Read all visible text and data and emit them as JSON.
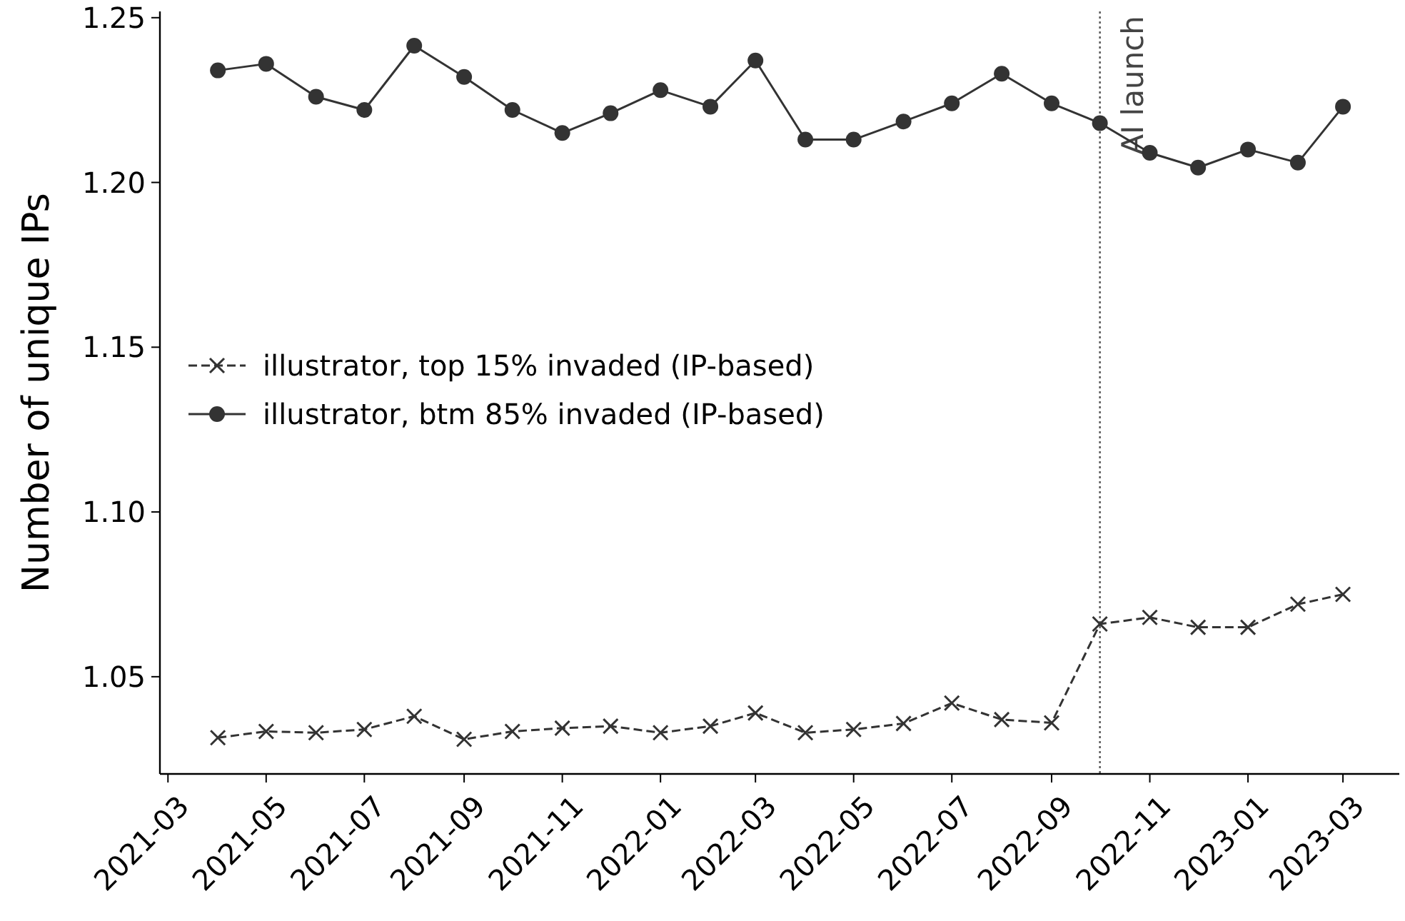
{
  "chart_data": {
    "type": "line",
    "ylabel": "Number of unique IPs",
    "x": [
      "2021-04",
      "2021-05",
      "2021-06",
      "2021-07",
      "2021-08",
      "2021-09",
      "2021-10",
      "2021-11",
      "2021-12",
      "2022-01",
      "2022-02",
      "2022-03",
      "2022-04",
      "2022-05",
      "2022-06",
      "2022-07",
      "2022-08",
      "2022-09",
      "2022-10",
      "2022-11",
      "2022-12",
      "2023-01",
      "2023-02",
      "2023-03"
    ],
    "series": [
      {
        "name": "illustrator, top 15% invaded (IP-based)",
        "color": "#333333",
        "marker": "cross",
        "line_style": "dashed",
        "values": [
          1.0315,
          1.0334,
          1.033,
          1.034,
          1.038,
          1.031,
          1.0334,
          1.0344,
          1.035,
          1.033,
          1.035,
          1.039,
          1.033,
          1.034,
          1.0358,
          1.042,
          1.037,
          1.036,
          1.066,
          1.068,
          1.065,
          1.065,
          1.072,
          1.075
        ]
      },
      {
        "name": "illustrator, btm 85% invaded (IP-based)",
        "color": "#333333",
        "marker": "circle",
        "line_style": "solid",
        "values": [
          1.234,
          1.236,
          1.226,
          1.222,
          1.2415,
          1.232,
          1.222,
          1.215,
          1.221,
          1.228,
          1.223,
          1.237,
          1.213,
          1.213,
          1.2185,
          1.224,
          1.233,
          1.224,
          1.218,
          1.209,
          1.2045,
          1.21,
          1.206,
          1.223
        ]
      }
    ],
    "xlim": [
      "2021-02-24",
      "2023-04-05"
    ],
    "xticks": [
      "2021-03",
      "2021-05",
      "2021-07",
      "2021-09",
      "2021-11",
      "2022-01",
      "2022-03",
      "2022-05",
      "2022-07",
      "2022-09",
      "2022-11",
      "2023-01",
      "2023-03"
    ],
    "ylim": [
      1.0205,
      1.2519
    ],
    "yticks": [
      1.05,
      {
        "value": 1.1,
        "label": "1.10"
      },
      1.15,
      {
        "value": 1.2,
        "label": "1.20"
      },
      1.25
    ],
    "ref_lines": [
      {
        "axis": "x",
        "value": "2022-10",
        "label": "AI launch",
        "color": "#555555",
        "line_style": "dotted"
      }
    ],
    "legend": "center left",
    "grid": false
  }
}
